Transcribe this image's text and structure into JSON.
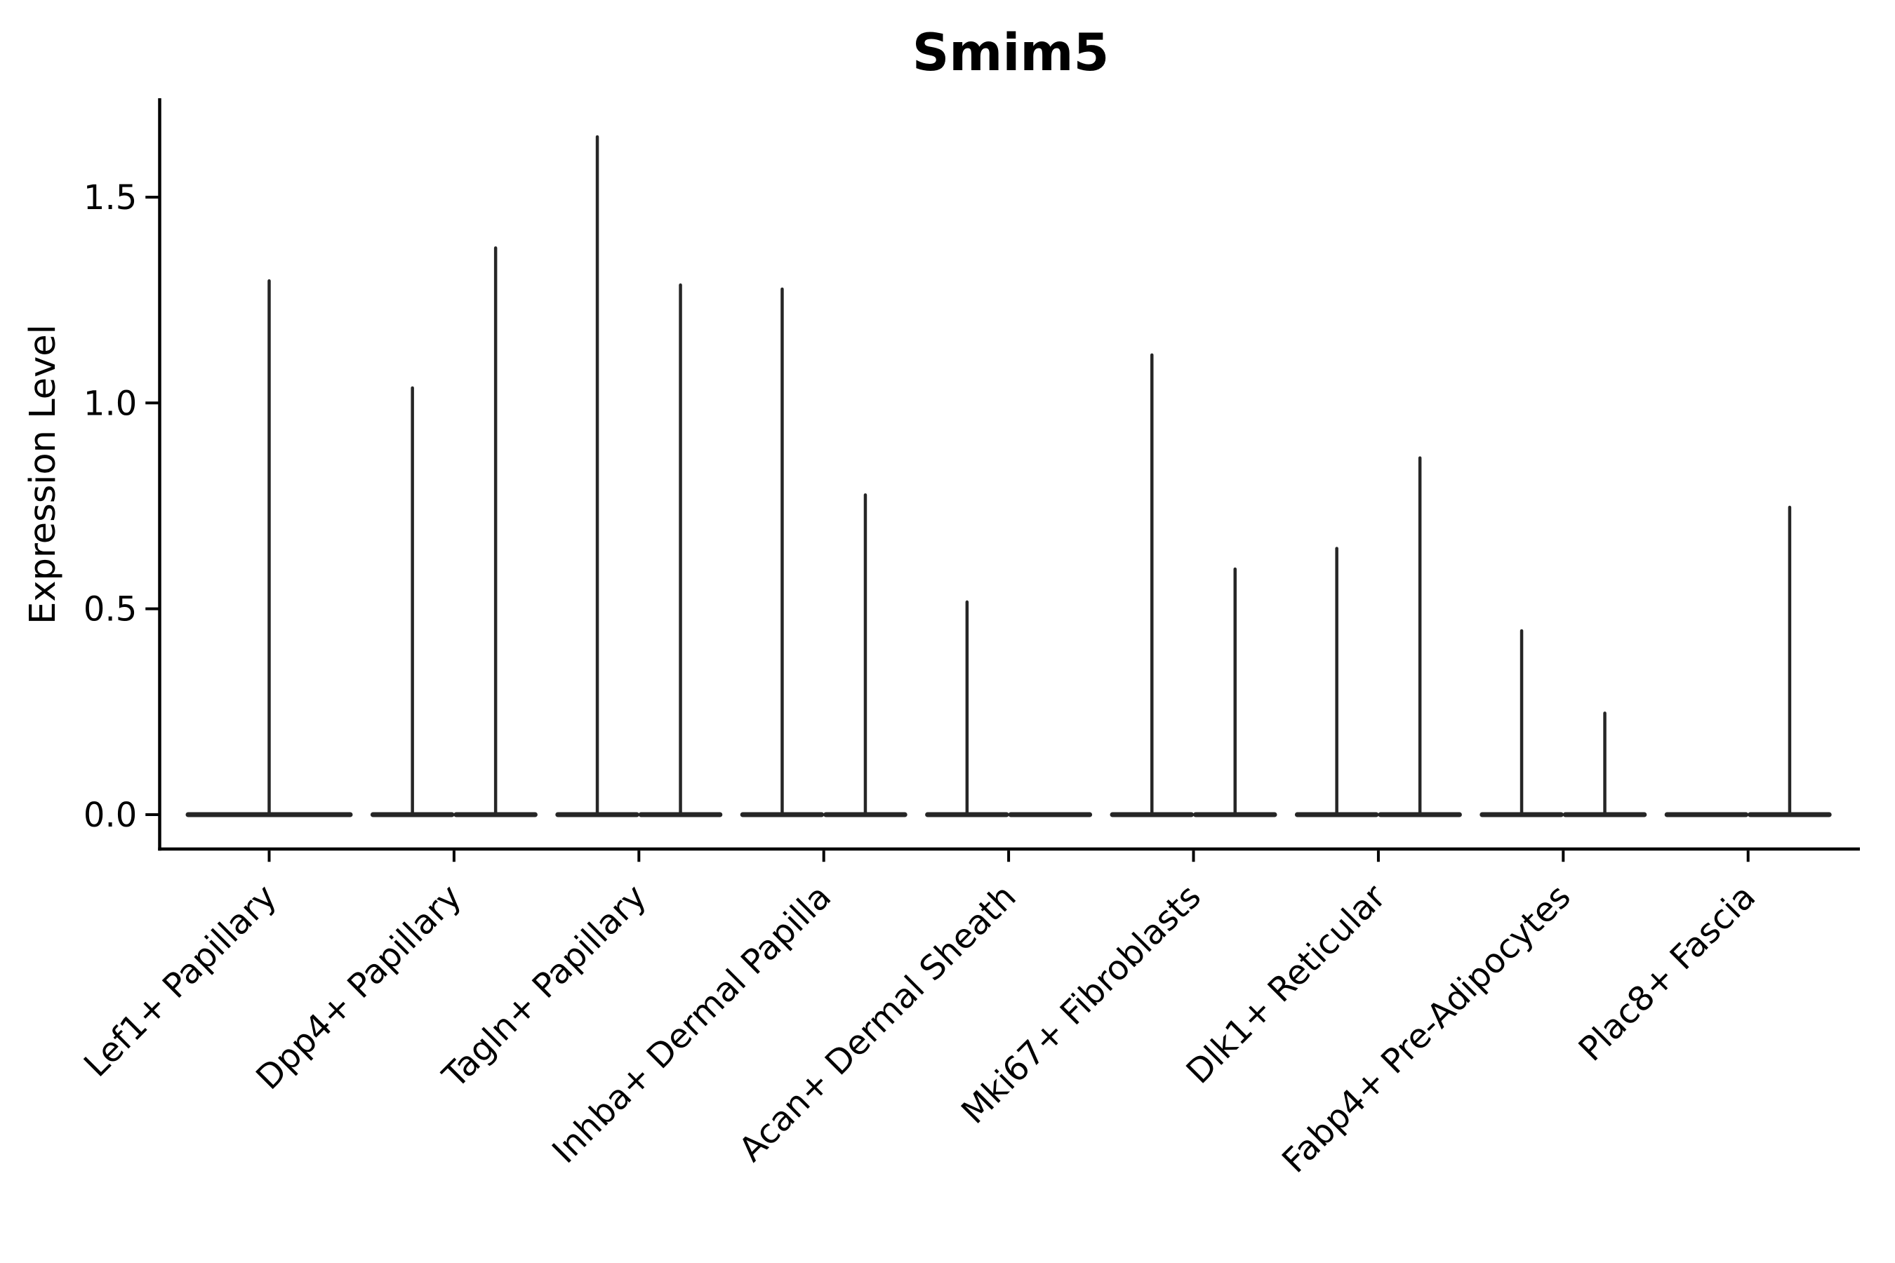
{
  "title": "Smim5",
  "y_axis": {
    "label": "Expression Level",
    "tick_labels": [
      "0.0",
      "0.5",
      "1.0",
      "1.5"
    ],
    "tick_values": [
      0.0,
      0.5,
      1.0,
      1.5
    ]
  },
  "chart_data": {
    "type": "violin",
    "title": "Smim5",
    "xlabel": "",
    "ylabel": "Expression Level",
    "ylim": [
      -0.08,
      1.74
    ],
    "yticks": [
      0.0,
      0.5,
      1.0,
      1.5
    ],
    "ytick_labels": [
      "0.0",
      "0.5",
      "1.0",
      "1.5"
    ],
    "grid": false,
    "legend": "none",
    "x_tick_label_rotation_deg": 45,
    "description": "Seurat-style violin plot of Smim5 expression; most cells at 0 so each violin renders as a flat base at 0 with a thin spike to its maximum. Categories 2-9 contain two dodged violins; category 1 has a single full-width violin; 'flat' violins have max 0.",
    "categories": [
      {
        "label": "Lef1+ Papillary",
        "violins": [
          {
            "position": "single",
            "max_expression": 1.3
          }
        ]
      },
      {
        "label": "Dpp4+ Papillary",
        "violins": [
          {
            "position": "left",
            "max_expression": 1.04
          },
          {
            "position": "right",
            "max_expression": 1.38
          }
        ]
      },
      {
        "label": "Tagln+ Papillary",
        "violins": [
          {
            "position": "left",
            "max_expression": 1.65
          },
          {
            "position": "right",
            "max_expression": 1.29
          }
        ]
      },
      {
        "label": "Inhba+ Dermal Papilla",
        "violins": [
          {
            "position": "left",
            "max_expression": 1.28
          },
          {
            "position": "right",
            "max_expression": 0.78
          }
        ]
      },
      {
        "label": "Acan+ Dermal Sheath",
        "violins": [
          {
            "position": "left",
            "max_expression": 0.52
          },
          {
            "position": "right",
            "max_expression": 0.0
          }
        ]
      },
      {
        "label": "Mki67+ Fibroblasts",
        "violins": [
          {
            "position": "left",
            "max_expression": 1.12
          },
          {
            "position": "right",
            "max_expression": 0.6
          }
        ]
      },
      {
        "label": "Dlk1+ Reticular",
        "violins": [
          {
            "position": "left",
            "max_expression": 0.65
          },
          {
            "position": "right",
            "max_expression": 0.87
          }
        ]
      },
      {
        "label": "Fabp4+ Pre-Adipocytes",
        "violins": [
          {
            "position": "left",
            "max_expression": 0.45
          },
          {
            "position": "right",
            "max_expression": 0.25
          }
        ]
      },
      {
        "label": "Plac8+ Fascia",
        "violins": [
          {
            "position": "left",
            "max_expression": 0.0
          },
          {
            "position": "right",
            "max_expression": 0.75
          }
        ]
      }
    ],
    "colors": {
      "violin_line": "#262626",
      "axis": "#000000",
      "text": "#000000",
      "background": "#ffffff"
    }
  }
}
